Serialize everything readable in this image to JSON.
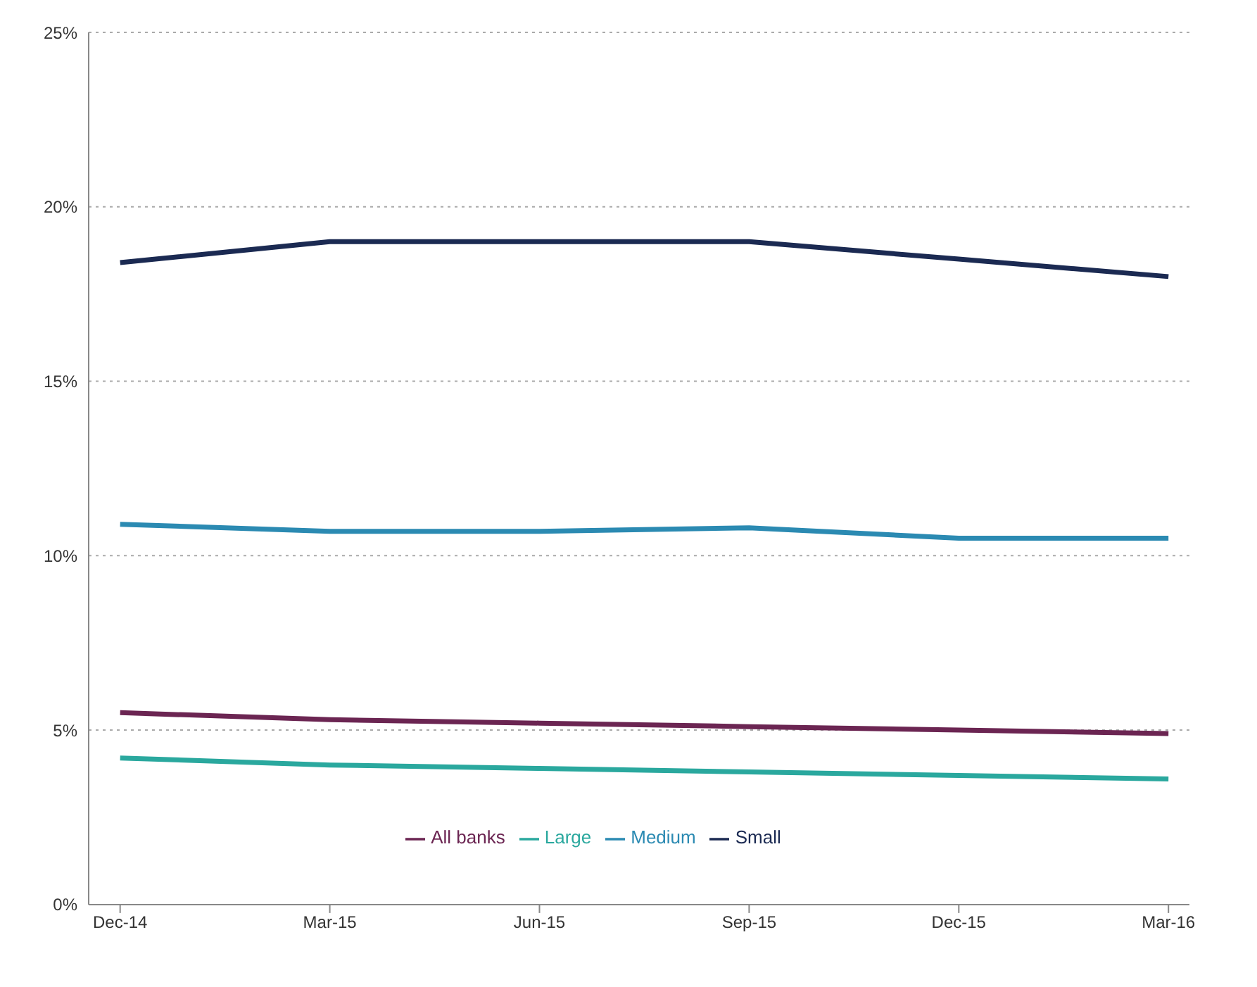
{
  "chart_data": {
    "type": "line",
    "categories": [
      "Dec-14",
      "Mar-15",
      "Jun-15",
      "Sep-15",
      "Dec-15",
      "Mar-16"
    ],
    "series": [
      {
        "name": "Small",
        "color": "#1b2a52",
        "values": [
          18.4,
          19.0,
          19.0,
          19.0,
          18.5,
          18.0
        ]
      },
      {
        "name": "Medium",
        "color": "#2b8ab2",
        "values": [
          10.9,
          10.7,
          10.7,
          10.8,
          10.5,
          10.5
        ]
      },
      {
        "name": "All banks",
        "color": "#6b2552",
        "values": [
          5.5,
          5.3,
          5.2,
          5.1,
          5.0,
          4.9
        ]
      },
      {
        "name": "Large",
        "color": "#2aa89e",
        "values": [
          4.2,
          4.0,
          3.9,
          3.8,
          3.7,
          3.6
        ]
      }
    ],
    "ylim": [
      0,
      25
    ],
    "yticks": [
      {
        "value": 0,
        "label": "0%"
      },
      {
        "value": 5,
        "label": "5%"
      },
      {
        "value": 10,
        "label": "10%"
      },
      {
        "value": 15,
        "label": "15%"
      },
      {
        "value": 20,
        "label": "20%"
      },
      {
        "value": 25,
        "label": "25%"
      }
    ],
    "grid": "y",
    "legend": "bottom",
    "marker": "none",
    "line_style": "solid"
  }
}
